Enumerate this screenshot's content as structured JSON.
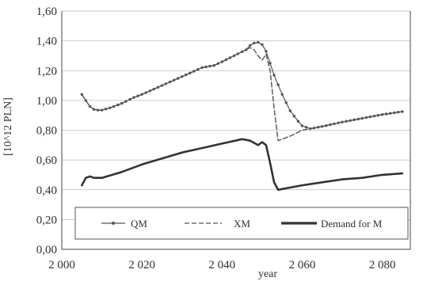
{
  "chart_data": {
    "type": "line",
    "title": "",
    "xlabel": "year",
    "ylabel": "[10^12 PLN]",
    "xlim": [
      2000,
      2087
    ],
    "ylim": [
      0,
      1.6
    ],
    "x_ticks": [
      2000,
      2020,
      2040,
      2060,
      2080
    ],
    "x_tick_labels": [
      "2 000",
      "2 020",
      "2 040",
      "2 060",
      "2 080"
    ],
    "y_ticks": [
      0,
      0.2,
      0.4,
      0.6,
      0.8,
      1.0,
      1.2,
      1.4,
      1.6
    ],
    "y_tick_labels": [
      "0,00",
      "0,20",
      "0,40",
      "0,60",
      "0,80",
      "1,00",
      "1,20",
      "1,40",
      "1,60"
    ],
    "grid": "horizontal",
    "legend_position": "bottom-inside",
    "series": [
      {
        "name": "QM",
        "style": "solid-with-markers",
        "color": "#555555",
        "points": [
          [
            2005,
            1.04
          ],
          [
            2006,
            1.0
          ],
          [
            2007,
            0.96
          ],
          [
            2008,
            0.94
          ],
          [
            2009,
            0.935
          ],
          [
            2010,
            0.935
          ],
          [
            2012,
            0.95
          ],
          [
            2015,
            0.98
          ],
          [
            2018,
            1.02
          ],
          [
            2020,
            1.04
          ],
          [
            2025,
            1.1
          ],
          [
            2030,
            1.16
          ],
          [
            2035,
            1.22
          ],
          [
            2038,
            1.235
          ],
          [
            2040,
            1.26
          ],
          [
            2043,
            1.3
          ],
          [
            2046,
            1.34
          ],
          [
            2047,
            1.37
          ],
          [
            2048,
            1.385
          ],
          [
            2049,
            1.39
          ],
          [
            2050,
            1.375
          ],
          [
            2051,
            1.33
          ],
          [
            2052,
            1.25
          ],
          [
            2053,
            1.17
          ],
          [
            2055,
            1.04
          ],
          [
            2057,
            0.93
          ],
          [
            2059,
            0.86
          ],
          [
            2060,
            0.83
          ],
          [
            2062,
            0.81
          ],
          [
            2065,
            0.825
          ],
          [
            2070,
            0.855
          ],
          [
            2075,
            0.88
          ],
          [
            2080,
            0.905
          ],
          [
            2085,
            0.925
          ]
        ]
      },
      {
        "name": "XM",
        "style": "dashed",
        "color": "#555555",
        "points": [
          [
            2005,
            1.04
          ],
          [
            2006,
            1.0
          ],
          [
            2007,
            0.96
          ],
          [
            2008,
            0.94
          ],
          [
            2009,
            0.935
          ],
          [
            2010,
            0.935
          ],
          [
            2012,
            0.95
          ],
          [
            2015,
            0.98
          ],
          [
            2018,
            1.02
          ],
          [
            2020,
            1.04
          ],
          [
            2025,
            1.1
          ],
          [
            2030,
            1.16
          ],
          [
            2035,
            1.22
          ],
          [
            2038,
            1.235
          ],
          [
            2040,
            1.26
          ],
          [
            2043,
            1.3
          ],
          [
            2046,
            1.34
          ],
          [
            2047,
            1.355
          ],
          [
            2048,
            1.34
          ],
          [
            2049,
            1.3
          ],
          [
            2050,
            1.27
          ],
          [
            2051,
            1.31
          ],
          [
            2052,
            1.2
          ],
          [
            2053,
            0.95
          ],
          [
            2054,
            0.73
          ],
          [
            2055,
            0.74
          ],
          [
            2057,
            0.76
          ],
          [
            2060,
            0.8
          ],
          [
            2065,
            0.825
          ],
          [
            2070,
            0.855
          ],
          [
            2075,
            0.88
          ],
          [
            2080,
            0.905
          ],
          [
            2085,
            0.925
          ]
        ]
      },
      {
        "name": "Demand for M",
        "style": "thick-solid",
        "color": "#333333",
        "points": [
          [
            2005,
            0.43
          ],
          [
            2006,
            0.48
          ],
          [
            2007,
            0.49
          ],
          [
            2008,
            0.48
          ],
          [
            2009,
            0.48
          ],
          [
            2010,
            0.48
          ],
          [
            2015,
            0.52
          ],
          [
            2020,
            0.57
          ],
          [
            2025,
            0.61
          ],
          [
            2030,
            0.65
          ],
          [
            2035,
            0.68
          ],
          [
            2040,
            0.71
          ],
          [
            2045,
            0.74
          ],
          [
            2046,
            0.735
          ],
          [
            2047,
            0.73
          ],
          [
            2048,
            0.715
          ],
          [
            2049,
            0.7
          ],
          [
            2050,
            0.72
          ],
          [
            2051,
            0.7
          ],
          [
            2052,
            0.58
          ],
          [
            2053,
            0.45
          ],
          [
            2054,
            0.4
          ],
          [
            2056,
            0.41
          ],
          [
            2060,
            0.43
          ],
          [
            2065,
            0.45
          ],
          [
            2070,
            0.47
          ],
          [
            2075,
            0.48
          ],
          [
            2080,
            0.5
          ],
          [
            2085,
            0.51
          ]
        ]
      }
    ]
  }
}
